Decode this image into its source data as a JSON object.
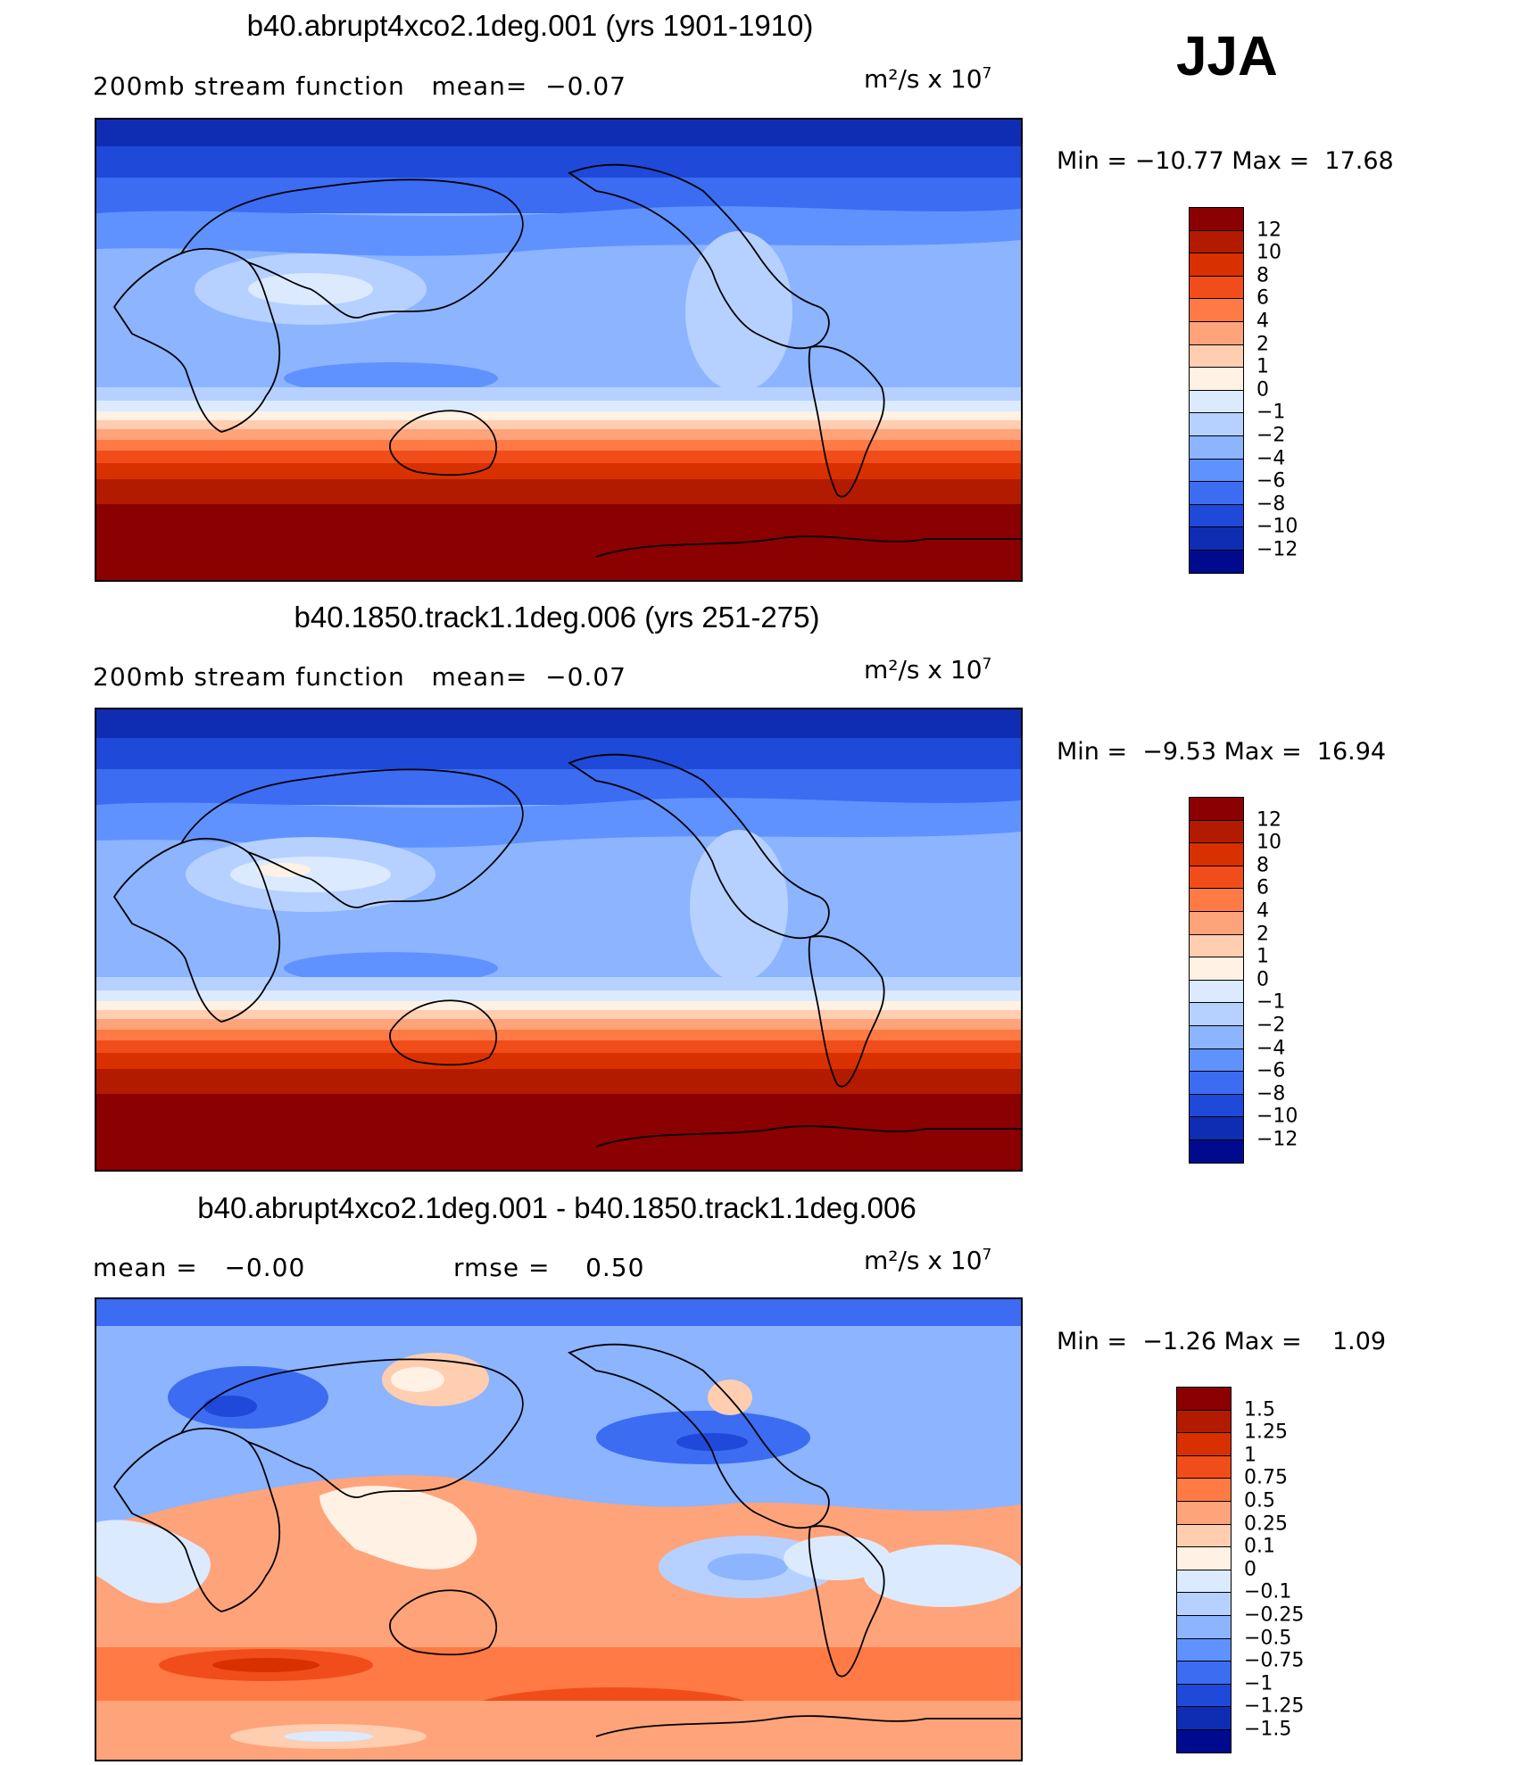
{
  "season": "JJA",
  "panels": [
    {
      "id": "p1",
      "title": "b40.abrupt4xco2.1deg.001 (yrs 1901-1910)",
      "subtitle_left": "200mb stream function   mean=  −0.07",
      "units_base": "m²/s x 10",
      "units_exp": "7",
      "minmax": "Min = −10.77 Max =  17.68",
      "colorbar": {
        "labels": [
          "12",
          "10",
          "8",
          "6",
          "4",
          "2",
          "1",
          "0",
          "−1",
          "−2",
          "−4",
          "−6",
          "−8",
          "−10",
          "−12"
        ],
        "colors": [
          "#8b0000",
          "#b31b00",
          "#d93000",
          "#f04d1a",
          "#ff7a45",
          "#ffa37a",
          "#ffcdb0",
          "#fff1e3",
          "#dbeaff",
          "#b6d1ff",
          "#8cb4ff",
          "#5f92ff",
          "#3b6cf2",
          "#1e49d9",
          "#0f2db3",
          "#000a8f"
        ]
      }
    },
    {
      "id": "p2",
      "title": "b40.1850.track1.1deg.006 (yrs 251-275)",
      "subtitle_left": "200mb stream function   mean=  −0.07",
      "units_base": "m²/s x 10",
      "units_exp": "7",
      "minmax": "Min =  −9.53 Max =  16.94",
      "colorbar": {
        "labels": [
          "12",
          "10",
          "8",
          "6",
          "4",
          "2",
          "1",
          "0",
          "−1",
          "−2",
          "−4",
          "−6",
          "−8",
          "−10",
          "−12"
        ],
        "colors": [
          "#8b0000",
          "#b31b00",
          "#d93000",
          "#f04d1a",
          "#ff7a45",
          "#ffa37a",
          "#ffcdb0",
          "#fff1e3",
          "#dbeaff",
          "#b6d1ff",
          "#8cb4ff",
          "#5f92ff",
          "#3b6cf2",
          "#1e49d9",
          "#0f2db3",
          "#000a8f"
        ]
      }
    },
    {
      "id": "p3",
      "title": "b40.abrupt4xco2.1deg.001 - b40.1850.track1.1deg.006",
      "subtitle_left": "mean =   −0.00",
      "subtitle_right": "rmse =    0.50",
      "units_base": "m²/s x 10",
      "units_exp": "7",
      "minmax": "Min =  −1.26 Max =    1.09",
      "colorbar": {
        "labels": [
          "1.5",
          "1.25",
          "1",
          "0.75",
          "0.5",
          "0.25",
          "0.1",
          "0",
          "−0.1",
          "−0.25",
          "−0.5",
          "−0.75",
          "−1",
          "−1.25",
          "−1.5"
        ],
        "colors": [
          "#8b0000",
          "#b31b00",
          "#d93000",
          "#f04d1a",
          "#ff7a45",
          "#ffa37a",
          "#ffcdb0",
          "#fff1e3",
          "#dbeaff",
          "#b6d1ff",
          "#8cb4ff",
          "#5f92ff",
          "#3b6cf2",
          "#1e49d9",
          "#0f2db3",
          "#000a8f"
        ]
      }
    }
  ]
}
